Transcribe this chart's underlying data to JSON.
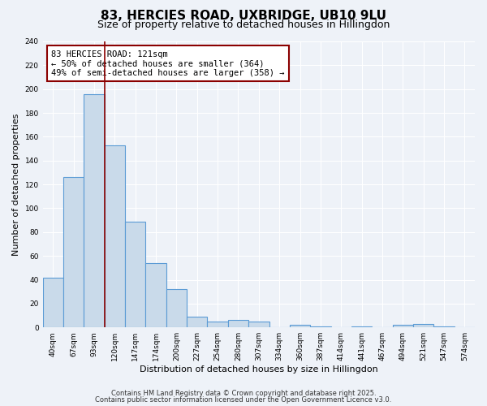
{
  "title": "83, HERCIES ROAD, UXBRIDGE, UB10 9LU",
  "subtitle": "Size of property relative to detached houses in Hillingdon",
  "xlabel": "Distribution of detached houses by size in Hillingdon",
  "ylabel": "Number of detached properties",
  "bin_labels": [
    "40sqm",
    "67sqm",
    "93sqm",
    "120sqm",
    "147sqm",
    "174sqm",
    "200sqm",
    "227sqm",
    "254sqm",
    "280sqm",
    "307sqm",
    "334sqm",
    "360sqm",
    "387sqm",
    "414sqm",
    "441sqm",
    "467sqm",
    "494sqm",
    "521sqm",
    "547sqm",
    "574sqm"
  ],
  "bar_values": [
    42,
    126,
    196,
    153,
    89,
    54,
    32,
    9,
    5,
    6,
    5,
    0,
    2,
    1,
    0,
    1,
    0,
    2,
    3,
    1,
    0
  ],
  "bar_color": "#c9daea",
  "bar_edge_color": "#5b9bd5",
  "bar_linewidth": 0.8,
  "vline_x_bin": 3,
  "vline_color": "#8b0000",
  "annotation_title": "83 HERCIES ROAD: 121sqm",
  "annotation_line1": "← 50% of detached houses are smaller (364)",
  "annotation_line2": "49% of semi-detached houses are larger (358) →",
  "annotation_box_color": "#ffffff",
  "annotation_box_edge": "#8b0000",
  "ylim": [
    0,
    240
  ],
  "yticks": [
    0,
    20,
    40,
    60,
    80,
    100,
    120,
    140,
    160,
    180,
    200,
    220,
    240
  ],
  "footer1": "Contains HM Land Registry data © Crown copyright and database right 2025.",
  "footer2": "Contains public sector information licensed under the Open Government Licence v3.0.",
  "background_color": "#eef2f8",
  "grid_color": "#ffffff",
  "title_fontsize": 11,
  "subtitle_fontsize": 9,
  "axis_label_fontsize": 8,
  "tick_fontsize": 6.5,
  "footer_fontsize": 6,
  "annotation_fontsize": 7.5
}
